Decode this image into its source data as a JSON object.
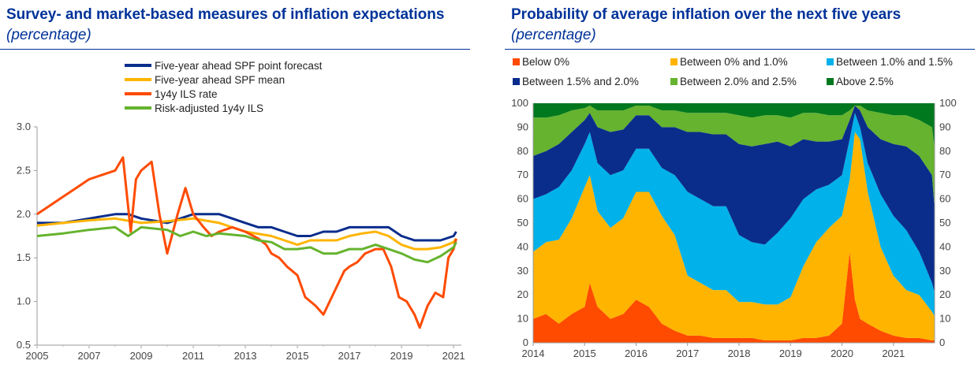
{
  "charts": [
    {
      "title": "Survey- and market-based measures of inflation expectations",
      "unit": "(percentage)"
    },
    {
      "title": "Probability of average inflation over the next five years",
      "unit": "(percentage)"
    }
  ],
  "chart_data": [
    {
      "type": "line",
      "title": "Survey- and market-based measures of inflation expectations",
      "unit": "(percentage)",
      "ylim": [
        0.5,
        3.0
      ],
      "xlim": [
        2005,
        2021.3
      ],
      "y_ticks": [
        "0.5",
        "1.0",
        "1.5",
        "2.0",
        "2.5",
        "3.0"
      ],
      "x_ticks": [
        "2005",
        "2007",
        "2009",
        "2011",
        "2013",
        "2015",
        "2017",
        "2019",
        "2021"
      ],
      "legend_position": "top",
      "series": [
        {
          "name": "Five-year ahead SPF point forecast",
          "color": "#0a2d8c",
          "points": [
            [
              2005,
              1.9
            ],
            [
              2006,
              1.9
            ],
            [
              2007,
              1.95
            ],
            [
              2008,
              2.0
            ],
            [
              2008.5,
              2.0
            ],
            [
              2009,
              1.95
            ],
            [
              2010,
              1.9
            ],
            [
              2010.5,
              1.95
            ],
            [
              2011,
              2.0
            ],
            [
              2012,
              2.0
            ],
            [
              2012.5,
              1.95
            ],
            [
              2013,
              1.9
            ],
            [
              2013.5,
              1.85
            ],
            [
              2014,
              1.85
            ],
            [
              2014.5,
              1.8
            ],
            [
              2015,
              1.75
            ],
            [
              2015.5,
              1.75
            ],
            [
              2016,
              1.8
            ],
            [
              2016.5,
              1.8
            ],
            [
              2017,
              1.85
            ],
            [
              2017.5,
              1.85
            ],
            [
              2018,
              1.85
            ],
            [
              2018.5,
              1.85
            ],
            [
              2019,
              1.75
            ],
            [
              2019.5,
              1.7
            ],
            [
              2020,
              1.7
            ],
            [
              2020.5,
              1.7
            ],
            [
              2021,
              1.75
            ],
            [
              2021.1,
              1.8
            ]
          ]
        },
        {
          "name": "Five-year ahead SPF mean",
          "color": "#ffb400",
          "points": [
            [
              2005,
              1.87
            ],
            [
              2006,
              1.9
            ],
            [
              2007,
              1.93
            ],
            [
              2008,
              1.95
            ],
            [
              2009,
              1.9
            ],
            [
              2010,
              1.92
            ],
            [
              2011,
              1.95
            ],
            [
              2012,
              1.9
            ],
            [
              2013,
              1.8
            ],
            [
              2014,
              1.75
            ],
            [
              2014.5,
              1.7
            ],
            [
              2015,
              1.65
            ],
            [
              2015.5,
              1.7
            ],
            [
              2016,
              1.7
            ],
            [
              2016.5,
              1.7
            ],
            [
              2017,
              1.75
            ],
            [
              2017.5,
              1.78
            ],
            [
              2018,
              1.8
            ],
            [
              2018.5,
              1.75
            ],
            [
              2019,
              1.65
            ],
            [
              2019.5,
              1.6
            ],
            [
              2020,
              1.6
            ],
            [
              2020.5,
              1.62
            ],
            [
              2021,
              1.68
            ],
            [
              2021.1,
              1.72
            ]
          ]
        },
        {
          "name": "1y4y ILS rate",
          "color": "#ff4b00",
          "points": [
            [
              2005,
              2.0
            ],
            [
              2005.5,
              2.1
            ],
            [
              2006,
              2.2
            ],
            [
              2006.5,
              2.3
            ],
            [
              2007,
              2.4
            ],
            [
              2007.5,
              2.45
            ],
            [
              2008,
              2.5
            ],
            [
              2008.3,
              2.65
            ],
            [
              2008.6,
              1.8
            ],
            [
              2008.8,
              2.4
            ],
            [
              2009,
              2.5
            ],
            [
              2009.4,
              2.6
            ],
            [
              2009.7,
              2.0
            ],
            [
              2010,
              1.55
            ],
            [
              2010.4,
              2.0
            ],
            [
              2010.7,
              2.3
            ],
            [
              2011,
              2.0
            ],
            [
              2011.4,
              1.85
            ],
            [
              2011.7,
              1.75
            ],
            [
              2012,
              1.8
            ],
            [
              2012.5,
              1.85
            ],
            [
              2013,
              1.8
            ],
            [
              2013.5,
              1.72
            ],
            [
              2013.8,
              1.65
            ],
            [
              2014,
              1.55
            ],
            [
              2014.3,
              1.5
            ],
            [
              2014.6,
              1.4
            ],
            [
              2015,
              1.3
            ],
            [
              2015.3,
              1.05
            ],
            [
              2015.7,
              0.95
            ],
            [
              2016,
              0.85
            ],
            [
              2016.4,
              1.1
            ],
            [
              2016.8,
              1.35
            ],
            [
              2017,
              1.4
            ],
            [
              2017.3,
              1.45
            ],
            [
              2017.6,
              1.55
            ],
            [
              2018,
              1.6
            ],
            [
              2018.3,
              1.6
            ],
            [
              2018.6,
              1.4
            ],
            [
              2018.9,
              1.05
            ],
            [
              2019.2,
              1.0
            ],
            [
              2019.5,
              0.85
            ],
            [
              2019.7,
              0.7
            ],
            [
              2020,
              0.95
            ],
            [
              2020.3,
              1.1
            ],
            [
              2020.6,
              1.05
            ],
            [
              2020.8,
              1.5
            ],
            [
              2021,
              1.6
            ],
            [
              2021.1,
              1.72
            ]
          ]
        },
        {
          "name": "Risk-adjusted 1y4y ILS",
          "color": "#65b32e",
          "points": [
            [
              2005,
              1.75
            ],
            [
              2006,
              1.78
            ],
            [
              2007,
              1.82
            ],
            [
              2008,
              1.85
            ],
            [
              2008.5,
              1.75
            ],
            [
              2009,
              1.85
            ],
            [
              2010,
              1.82
            ],
            [
              2010.5,
              1.75
            ],
            [
              2011,
              1.8
            ],
            [
              2011.5,
              1.75
            ],
            [
              2012,
              1.78
            ],
            [
              2013,
              1.75
            ],
            [
              2013.5,
              1.7
            ],
            [
              2014,
              1.68
            ],
            [
              2014.5,
              1.6
            ],
            [
              2015,
              1.6
            ],
            [
              2015.5,
              1.62
            ],
            [
              2016,
              1.55
            ],
            [
              2016.5,
              1.55
            ],
            [
              2017,
              1.6
            ],
            [
              2017.5,
              1.6
            ],
            [
              2018,
              1.65
            ],
            [
              2018.5,
              1.6
            ],
            [
              2019,
              1.55
            ],
            [
              2019.5,
              1.48
            ],
            [
              2020,
              1.45
            ],
            [
              2020.5,
              1.52
            ],
            [
              2021,
              1.62
            ],
            [
              2021.1,
              1.68
            ]
          ]
        }
      ]
    },
    {
      "type": "area",
      "stacked": true,
      "title": "Probability of average inflation over the next five years",
      "unit": "(percentage)",
      "ylim": [
        0,
        100
      ],
      "xlim": [
        2014,
        2021.8
      ],
      "y_ticks": [
        "0",
        "10",
        "20",
        "30",
        "40",
        "50",
        "60",
        "70",
        "80",
        "90",
        "100"
      ],
      "x_ticks": [
        "2014",
        "2015",
        "2016",
        "2017",
        "2018",
        "2019",
        "2020",
        "2021"
      ],
      "legend_position": "top",
      "x": [
        2014,
        2014.25,
        2014.5,
        2014.75,
        2015,
        2015.1,
        2015.25,
        2015.5,
        2015.75,
        2016,
        2016.25,
        2016.5,
        2016.75,
        2017,
        2017.25,
        2017.5,
        2017.75,
        2018,
        2018.25,
        2018.5,
        2018.75,
        2019,
        2019.25,
        2019.5,
        2019.75,
        2020,
        2020.15,
        2020.25,
        2020.35,
        2020.5,
        2020.75,
        2021,
        2021.25,
        2021.5,
        2021.75,
        2021.8
      ],
      "series": [
        {
          "name": "Below 0%",
          "color": "#ff4b00",
          "values": [
            10,
            12,
            8,
            12,
            15,
            25,
            15,
            10,
            12,
            18,
            15,
            8,
            5,
            3,
            3,
            2,
            2,
            2,
            2,
            1,
            1,
            1,
            2,
            2,
            3,
            8,
            38,
            18,
            10,
            8,
            5,
            3,
            2,
            2,
            1,
            1
          ]
        },
        {
          "name": "Between 0% and 1.0%",
          "color": "#ffb400",
          "values": [
            28,
            30,
            35,
            40,
            50,
            45,
            40,
            38,
            40,
            45,
            48,
            45,
            40,
            25,
            22,
            20,
            20,
            15,
            15,
            15,
            15,
            18,
            30,
            40,
            45,
            45,
            30,
            70,
            75,
            55,
            35,
            25,
            20,
            18,
            12,
            10
          ]
        },
        {
          "name": "Between 1.0% and 1.5%",
          "color": "#00b1ea",
          "values": [
            22,
            20,
            22,
            20,
            18,
            18,
            20,
            22,
            20,
            18,
            18,
            20,
            25,
            35,
            35,
            35,
            35,
            28,
            25,
            25,
            30,
            33,
            28,
            22,
            18,
            17,
            17,
            8,
            5,
            12,
            22,
            25,
            25,
            18,
            12,
            10
          ]
        },
        {
          "name": "Between 1.5% and 2.0%",
          "color": "#0a2d8c",
          "values": [
            18,
            18,
            18,
            16,
            10,
            8,
            15,
            18,
            17,
            14,
            14,
            17,
            20,
            25,
            28,
            30,
            30,
            38,
            40,
            42,
            38,
            30,
            25,
            20,
            18,
            15,
            8,
            3,
            7,
            15,
            23,
            30,
            35,
            40,
            45,
            35
          ]
        },
        {
          "name": "Between 2.0% and 2.5%",
          "color": "#65b32e",
          "values": [
            16,
            14,
            12,
            9,
            5,
            3,
            7,
            9,
            8,
            4,
            4,
            7,
            7,
            8,
            8,
            9,
            9,
            12,
            12,
            12,
            11,
            12,
            11,
            12,
            11,
            10,
            4,
            0,
            2,
            7,
            11,
            12,
            13,
            15,
            20,
            25
          ]
        },
        {
          "name": "Above 2.5%",
          "color": "#00781e",
          "values": [
            6,
            6,
            5,
            3,
            2,
            1,
            3,
            3,
            3,
            1,
            1,
            3,
            3,
            4,
            4,
            4,
            4,
            5,
            6,
            5,
            5,
            6,
            4,
            4,
            5,
            5,
            3,
            1,
            1,
            3,
            4,
            5,
            5,
            7,
            10,
            19
          ]
        }
      ]
    }
  ]
}
